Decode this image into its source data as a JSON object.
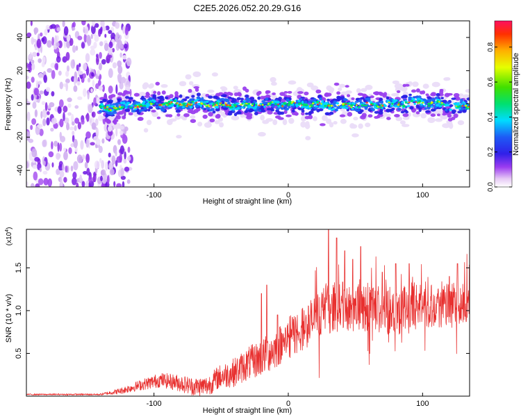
{
  "chart_data": [
    {
      "type": "heatmap",
      "title": "C2E5.2026.052.20.29.G16",
      "xlabel": "Height of straight line (km)",
      "ylabel": "Frequency (Hz)",
      "xlim": [
        -195,
        135
      ],
      "ylim": [
        -50,
        50
      ],
      "xticks": [
        -100,
        0,
        100
      ],
      "xtick_labels": [
        "-100",
        "0",
        "100"
      ],
      "yticks": [
        -40,
        -20,
        0,
        20,
        40
      ],
      "ytick_labels": [
        "-40",
        "-20",
        "0",
        "20",
        "40"
      ],
      "colorbar": {
        "label": "Normalized spectral amplitude",
        "range": [
          0.0,
          0.95
        ],
        "ticks": [
          0.0,
          0.2,
          0.4,
          0.6,
          0.8
        ],
        "tick_labels": [
          "0.0",
          "0.2",
          "0.4",
          "0.6",
          "0.8"
        ]
      },
      "features": {
        "noise_region_x": [
          -195,
          -125
        ],
        "band_start_x": -140,
        "band_center_hz": [
          [
            -140,
            -3
          ],
          [
            -100,
            0
          ],
          [
            -60,
            0
          ],
          [
            -40,
            -1
          ],
          [
            0,
            0
          ],
          [
            40,
            -1
          ],
          [
            80,
            0
          ],
          [
            100,
            1
          ],
          [
            135,
            -2
          ]
        ]
      }
    },
    {
      "type": "line",
      "xlabel": "Height of straight line (km)",
      "ylabel": "SNR (10 * v/v)",
      "multiplier_base": "x10",
      "multiplier_exp": "4",
      "color": "#e8302f",
      "xlim": [
        -195,
        135
      ],
      "ylim": [
        0,
        1.95
      ],
      "xticks": [
        -100,
        0,
        100
      ],
      "xtick_labels": [
        "-100",
        "0",
        "100"
      ],
      "yticks": [
        0.5,
        1.0,
        1.5
      ],
      "ytick_labels": [
        "0.5",
        "1.0",
        "1.5"
      ],
      "trend": [
        [
          -195,
          0.02
        ],
        [
          -140,
          0.02
        ],
        [
          -125,
          0.06
        ],
        [
          -110,
          0.13
        ],
        [
          -95,
          0.19
        ],
        [
          -80,
          0.15
        ],
        [
          -70,
          0.11
        ],
        [
          -60,
          0.12
        ],
        [
          -52,
          0.22
        ],
        [
          -40,
          0.28
        ],
        [
          -30,
          0.38
        ],
        [
          -20,
          0.45
        ],
        [
          -10,
          0.55
        ],
        [
          0,
          0.68
        ],
        [
          10,
          0.78
        ],
        [
          18,
          0.88
        ],
        [
          25,
          1.0
        ],
        [
          40,
          1.05
        ],
        [
          60,
          1.02
        ],
        [
          80,
          1.0
        ],
        [
          100,
          1.08
        ],
        [
          120,
          1.05
        ],
        [
          135,
          1.07
        ]
      ],
      "noise_amplitude": [
        [
          -195,
          0.008
        ],
        [
          -140,
          0.01
        ],
        [
          -100,
          0.08
        ],
        [
          -60,
          0.12
        ],
        [
          -20,
          0.22
        ],
        [
          20,
          0.28
        ],
        [
          60,
          0.3
        ],
        [
          135,
          0.25
        ]
      ],
      "peaks": [
        [
          -20,
          1.2
        ],
        [
          -16,
          1.3
        ],
        [
          -8,
          0.95
        ],
        [
          30,
          1.95
        ],
        [
          36,
          1.85
        ],
        [
          42,
          1.7
        ],
        [
          48,
          1.6
        ],
        [
          54,
          1.75
        ],
        [
          70,
          1.45
        ],
        [
          80,
          1.55
        ],
        [
          90,
          1.55
        ],
        [
          120,
          1.4
        ],
        [
          126,
          1.55
        ]
      ]
    }
  ]
}
